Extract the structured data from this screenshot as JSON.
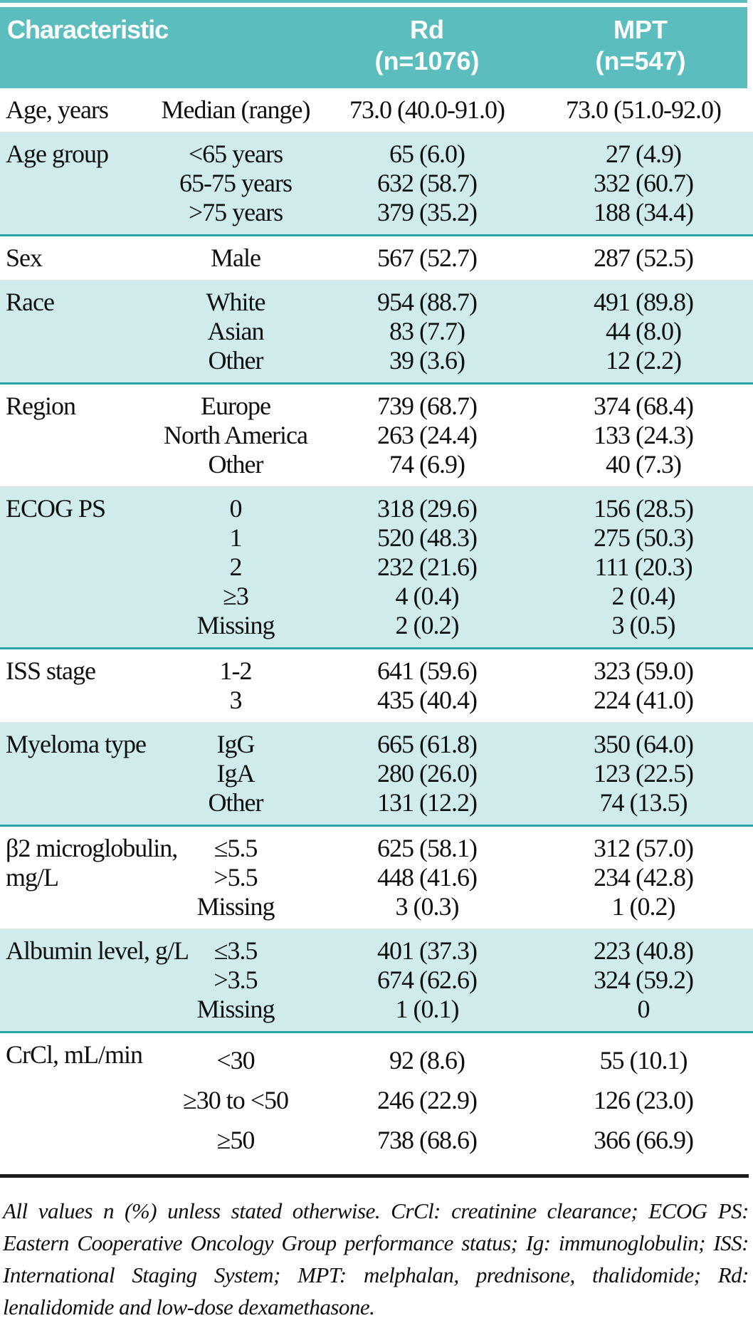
{
  "header": {
    "characteristic": "Characteristic",
    "rd": {
      "line1": "Rd",
      "line2": "(n=1076)"
    },
    "mpt": {
      "line1": "MPT",
      "line2": "(n=547)"
    }
  },
  "sections": [
    {
      "label": "Age, years",
      "shaded": false,
      "spaced": false,
      "rows": [
        {
          "sub": "Median (range)",
          "rd": "73.0 (40.0-91.0)",
          "mpt": "73.0 (51.0-92.0)"
        }
      ]
    },
    {
      "label": "Age group",
      "shaded": true,
      "spaced": false,
      "rows": [
        {
          "sub": "<65 years",
          "rd": "65 (6.0)",
          "mpt": "27 (4.9)"
        },
        {
          "sub": "65-75 years",
          "rd": "632 (58.7)",
          "mpt": "332 (60.7)"
        },
        {
          "sub": ">75 years",
          "rd": "379 (35.2)",
          "mpt": "188 (34.4)"
        }
      ]
    },
    {
      "label": "Sex",
      "shaded": false,
      "spaced": false,
      "rows": [
        {
          "sub": "Male",
          "rd": "567 (52.7)",
          "mpt": "287 (52.5)"
        }
      ]
    },
    {
      "label": "Race",
      "shaded": true,
      "spaced": false,
      "rows": [
        {
          "sub": "White",
          "rd": "954 (88.7)",
          "mpt": "491 (89.8)"
        },
        {
          "sub": "Asian",
          "rd": "83 (7.7)",
          "mpt": "44 (8.0)"
        },
        {
          "sub": "Other",
          "rd": "39 (3.6)",
          "mpt": "12 (2.2)"
        }
      ]
    },
    {
      "label": "Region",
      "shaded": false,
      "spaced": false,
      "rows": [
        {
          "sub": "Europe",
          "rd": "739 (68.7)",
          "mpt": "374 (68.4)"
        },
        {
          "sub": "North America",
          "rd": "263 (24.4)",
          "mpt": "133 (24.3)"
        },
        {
          "sub": "Other",
          "rd": "74 (6.9)",
          "mpt": "40 (7.3)"
        }
      ]
    },
    {
      "label": "ECOG PS",
      "shaded": true,
      "spaced": false,
      "rows": [
        {
          "sub": "0",
          "rd": "318 (29.6)",
          "mpt": "156 (28.5)"
        },
        {
          "sub": "1",
          "rd": "520 (48.3)",
          "mpt": "275 (50.3)"
        },
        {
          "sub": "2",
          "rd": "232 (21.6)",
          "mpt": "111 (20.3)"
        },
        {
          "sub": "≥3",
          "rd": "4 (0.4)",
          "mpt": "2 (0.4)"
        },
        {
          "sub": "Missing",
          "rd": "2 (0.2)",
          "mpt": "3 (0.5)"
        }
      ]
    },
    {
      "label": "ISS stage",
      "shaded": false,
      "spaced": false,
      "rows": [
        {
          "sub": "1-2",
          "rd": "641 (59.6)",
          "mpt": "323 (59.0)"
        },
        {
          "sub": "3",
          "rd": "435 (40.4)",
          "mpt": "224 (41.0)"
        }
      ]
    },
    {
      "label": "Myeloma type",
      "shaded": true,
      "spaced": false,
      "rows": [
        {
          "sub": "IgG",
          "rd": "665 (61.8)",
          "mpt": "350 (64.0)"
        },
        {
          "sub": "IgA",
          "rd": "280 (26.0)",
          "mpt": "123 (22.5)"
        },
        {
          "sub": "Other",
          "rd": "131 (12.2)",
          "mpt": "74 (13.5)"
        }
      ]
    },
    {
      "label": "β2 microglobulin,\nmg/L",
      "shaded": false,
      "spaced": false,
      "rows": [
        {
          "sub": "≤5.5",
          "rd": "625 (58.1)",
          "mpt": "312 (57.0)"
        },
        {
          "sub": ">5.5",
          "rd": "448 (41.6)",
          "mpt": "234 (42.8)"
        },
        {
          "sub": "Missing",
          "rd": "3 (0.3)",
          "mpt": "1 (0.2)"
        }
      ]
    },
    {
      "label": "Albumin level, g/L",
      "shaded": true,
      "spaced": false,
      "rows": [
        {
          "sub": "≤3.5",
          "rd": "401 (37.3)",
          "mpt": "223 (40.8)"
        },
        {
          "sub": ">3.5",
          "rd": "674 (62.6)",
          "mpt": "324 (59.2)"
        },
        {
          "sub": "Missing",
          "rd": "1 (0.1)",
          "mpt": "0"
        }
      ]
    },
    {
      "label": "CrCl, mL/min",
      "shaded": false,
      "spaced": true,
      "rows": [
        {
          "sub": "<30",
          "rd": "92 (8.6)",
          "mpt": "55 (10.1)"
        },
        {
          "sub": "≥30 to <50",
          "rd": "246 (22.9)",
          "mpt": "126 (23.0)"
        },
        {
          "sub": "≥50",
          "rd": "738 (68.6)",
          "mpt": "366 (66.9)"
        }
      ]
    }
  ],
  "footnote": "All values n (%) unless stated otherwise. CrCl: creatinine clearance; ECOG PS: Eastern Cooperative Oncology Group performance status; Ig: immunoglobulin; ISS: International Staging System; MPT: melphalan, prednisone, thalidomide; Rd: lenalidomide and low-dose dexamethasone.",
  "colors": {
    "header_bg": "#5cbdbe",
    "shaded_row_bg": "#cfebeb",
    "section_rule_teal": "#27a4a8",
    "footnote_rule_black": "#1b1b1b",
    "header_text": "#ffffff",
    "body_text": "#101010"
  }
}
